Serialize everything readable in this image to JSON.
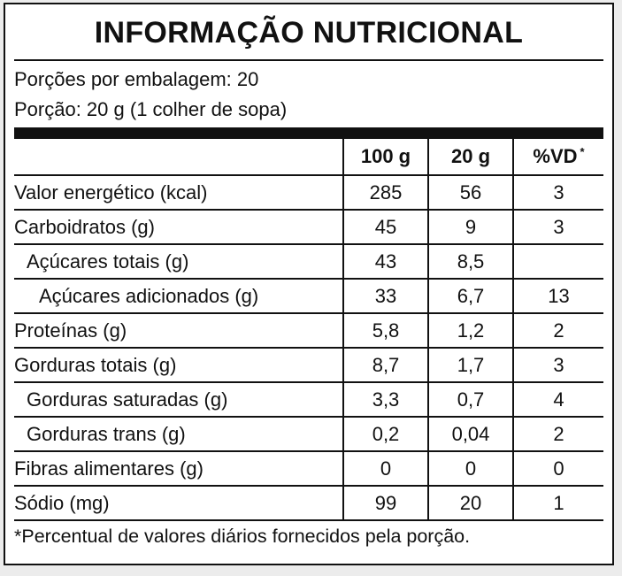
{
  "title": "INFORMAÇÃO NUTRICIONAL",
  "servings_per_package": "Porções por embalagem: 20",
  "serving_size": "Porção: 20 g (1 colher de sopa)",
  "columns": {
    "col1": "100 g",
    "col2": "20 g",
    "col3": "%VD",
    "col3_mark": "*"
  },
  "rows": [
    {
      "name": "Valor energético (kcal)",
      "v100": "285",
      "v20": "56",
      "vd": "3"
    },
    {
      "name": "Carboidratos (g)",
      "v100": "45",
      "v20": "9",
      "vd": "3"
    },
    {
      "name": "Açúcares totais (g)",
      "v100": "43",
      "v20": "8,5",
      "vd": ""
    },
    {
      "name": "Açúcares adicionados (g)",
      "v100": "33",
      "v20": "6,7",
      "vd": "13"
    },
    {
      "name": "Proteínas (g)",
      "v100": "5,8",
      "v20": "1,2",
      "vd": "2"
    },
    {
      "name": "Gorduras totais (g)",
      "v100": "8,7",
      "v20": "1,7",
      "vd": "3"
    },
    {
      "name": "Gorduras saturadas (g)",
      "v100": "3,3",
      "v20": "0,7",
      "vd": "4"
    },
    {
      "name": "Gorduras trans (g)",
      "v100": "0,2",
      "v20": "0,04",
      "vd": "2"
    },
    {
      "name": "Fibras alimentares (g)",
      "v100": "0",
      "v20": "0",
      "vd": "0"
    },
    {
      "name": "Sódio (mg)",
      "v100": "99",
      "v20": "20",
      "vd": "1"
    }
  ],
  "footnote": "*Percentual de valores diários fornecidos pela porção."
}
